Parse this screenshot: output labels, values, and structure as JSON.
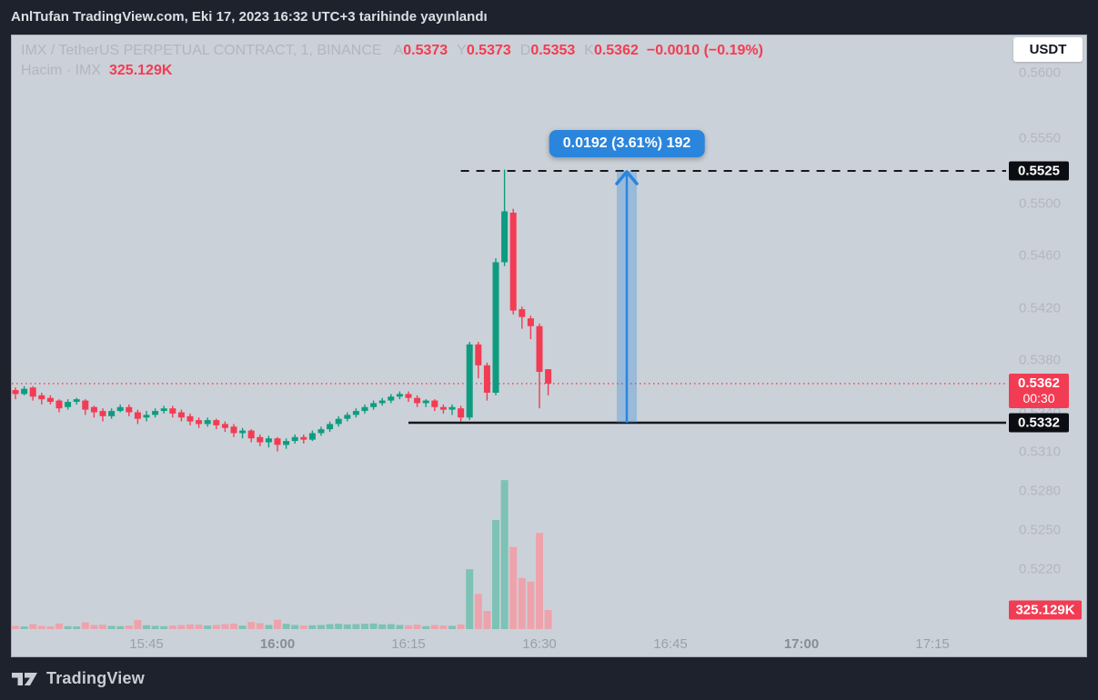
{
  "publish_bar": {
    "text": "AnlTufan TradingView.com, Eki 17, 2023 16:32 UTC+3 tarihinde yayınlandı"
  },
  "legend": {
    "symbol": "IMX / TetherUS PERPETUAL CONTRACT, 1, BINANCE",
    "ohlc_fields": [
      {
        "key": "A",
        "value": "0.5373"
      },
      {
        "key": "Y",
        "value": "0.5373"
      },
      {
        "key": "D",
        "value": "0.5353"
      },
      {
        "key": "K",
        "value": "0.5362"
      }
    ],
    "change": "−0.0010 (−0.19%)",
    "volume_label": "Hacim · IMX",
    "volume_value": "325.129K"
  },
  "currency_button_label": "USDT",
  "measure_tool": {
    "label": "0.0192 (3.61%) 192",
    "from_price": 0.5332,
    "to_price": 0.5525,
    "minute_index": 70
  },
  "levels": {
    "resistance": {
      "price": 0.5525,
      "style": "dashed",
      "start_minute_index": 51
    },
    "support": {
      "price": 0.5332,
      "style": "solid",
      "start_minute_index": 45
    },
    "last_price": 0.5362
  },
  "price_tags": {
    "high": {
      "label": "0.5525",
      "price": 0.5525,
      "style": "black"
    },
    "last": {
      "label": "0.5362",
      "countdown": "00:30",
      "price": 0.5362,
      "style": "red"
    },
    "low": {
      "label": "0.5332",
      "price": 0.5332,
      "style": "black"
    },
    "volume": {
      "label": "325.129K",
      "value_k": 325.129,
      "style": "red"
    }
  },
  "footer": {
    "brand": "TradingView"
  },
  "colors": {
    "up": "#0e9c80",
    "down": "#f23c53",
    "vol_up": "#7dc2b5",
    "vol_down": "#eea3ac",
    "blue": "#2a85dc",
    "level_black": "#15171c",
    "panel_bg": "#cbd1d8",
    "frame_bg": "#1e222d",
    "tag_red": "#f23c53",
    "tag_black": "#0b0d13"
  },
  "chart_data": {
    "type": "candlestick",
    "interval": "1",
    "price_axis_ticks": [
      {
        "label": "0.5600",
        "value": 0.56
      },
      {
        "label": "0.5550",
        "value": 0.555
      },
      {
        "label": "0.5500",
        "value": 0.55
      },
      {
        "label": "0.5460",
        "value": 0.546
      },
      {
        "label": "0.5420",
        "value": 0.542
      },
      {
        "label": "0.5380",
        "value": 0.538
      },
      {
        "label": "0.5340",
        "value": 0.534
      },
      {
        "label": "0.5310",
        "value": 0.531
      },
      {
        "label": "0.5280",
        "value": 0.528
      },
      {
        "label": "0.5250",
        "value": 0.525
      },
      {
        "label": "0.5220",
        "value": 0.522
      }
    ],
    "time_axis_ticks": [
      {
        "label": "15:45",
        "minute_index": 15,
        "bold": false
      },
      {
        "label": "16:00",
        "minute_index": 30,
        "bold": true
      },
      {
        "label": "16:15",
        "minute_index": 45,
        "bold": false
      },
      {
        "label": "16:30",
        "minute_index": 60,
        "bold": false
      },
      {
        "label": "16:45",
        "minute_index": 75,
        "bold": false
      },
      {
        "label": "17:00",
        "minute_index": 90,
        "bold": true
      },
      {
        "label": "17:15",
        "minute_index": 105,
        "bold": false
      }
    ],
    "columns": [
      "time",
      "open",
      "high",
      "low",
      "close",
      "volume_k"
    ],
    "candles": [
      [
        "15:30",
        0.5357,
        0.5359,
        0.535,
        0.5354,
        55
      ],
      [
        "15:31",
        0.5354,
        0.536,
        0.5353,
        0.5358,
        45
      ],
      [
        "15:32",
        0.5359,
        0.536,
        0.5349,
        0.5352,
        85
      ],
      [
        "15:33",
        0.5353,
        0.5355,
        0.5346,
        0.535,
        55
      ],
      [
        "15:34",
        0.5351,
        0.5353,
        0.5346,
        0.5348,
        45
      ],
      [
        "15:35",
        0.5349,
        0.535,
        0.534,
        0.5343,
        95
      ],
      [
        "15:36",
        0.5344,
        0.535,
        0.5342,
        0.5348,
        50
      ],
      [
        "15:37",
        0.5348,
        0.5351,
        0.5346,
        0.535,
        45
      ],
      [
        "15:38",
        0.5349,
        0.535,
        0.5338,
        0.5342,
        115
      ],
      [
        "15:39",
        0.5344,
        0.5345,
        0.5336,
        0.534,
        70
      ],
      [
        "15:40",
        0.5341,
        0.5343,
        0.5333,
        0.5337,
        75
      ],
      [
        "15:41",
        0.5337,
        0.5343,
        0.5335,
        0.5341,
        55
      ],
      [
        "15:42",
        0.5341,
        0.5346,
        0.534,
        0.5344,
        50
      ],
      [
        "15:43",
        0.5344,
        0.5346,
        0.5337,
        0.534,
        60
      ],
      [
        "15:44",
        0.534,
        0.5342,
        0.5331,
        0.5335,
        155
      ],
      [
        "15:45",
        0.5336,
        0.5341,
        0.5333,
        0.5338,
        65
      ],
      [
        "15:46",
        0.5338,
        0.5343,
        0.5336,
        0.5341,
        55
      ],
      [
        "15:47",
        0.5341,
        0.5345,
        0.5339,
        0.5343,
        50
      ],
      [
        "15:48",
        0.5343,
        0.5345,
        0.5336,
        0.5339,
        60
      ],
      [
        "15:49",
        0.534,
        0.5342,
        0.5333,
        0.5336,
        70
      ],
      [
        "15:50",
        0.5337,
        0.5339,
        0.533,
        0.5333,
        80
      ],
      [
        "15:51",
        0.5334,
        0.5336,
        0.5328,
        0.5331,
        75
      ],
      [
        "15:52",
        0.5331,
        0.5336,
        0.5329,
        0.5334,
        60
      ],
      [
        "15:53",
        0.5334,
        0.5335,
        0.5327,
        0.533,
        70
      ],
      [
        "15:54",
        0.5331,
        0.5333,
        0.5325,
        0.5328,
        85
      ],
      [
        "15:55",
        0.5329,
        0.5331,
        0.5321,
        0.5324,
        95
      ],
      [
        "15:56",
        0.5324,
        0.5328,
        0.532,
        0.5326,
        60
      ],
      [
        "15:57",
        0.5326,
        0.5327,
        0.5317,
        0.532,
        120
      ],
      [
        "15:58",
        0.5321,
        0.5323,
        0.5314,
        0.5317,
        100
      ],
      [
        "15:59",
        0.5317,
        0.5322,
        0.5313,
        0.532,
        70
      ],
      [
        "16:00",
        0.532,
        0.5321,
        0.531,
        0.5315,
        160
      ],
      [
        "16:01",
        0.5315,
        0.532,
        0.5312,
        0.5318,
        90
      ],
      [
        "16:02",
        0.5318,
        0.5323,
        0.5316,
        0.5321,
        70
      ],
      [
        "16:03",
        0.5321,
        0.5323,
        0.5316,
        0.5319,
        60
      ],
      [
        "16:04",
        0.5319,
        0.5326,
        0.5318,
        0.5324,
        65
      ],
      [
        "16:05",
        0.5324,
        0.5329,
        0.5322,
        0.5327,
        70
      ],
      [
        "16:06",
        0.5327,
        0.5333,
        0.5325,
        0.5331,
        85
      ],
      [
        "16:07",
        0.5331,
        0.5337,
        0.5329,
        0.5335,
        90
      ],
      [
        "16:08",
        0.5335,
        0.534,
        0.5333,
        0.5338,
        80
      ],
      [
        "16:09",
        0.5338,
        0.5343,
        0.5336,
        0.5341,
        85
      ],
      [
        "16:10",
        0.5341,
        0.5346,
        0.5339,
        0.5344,
        90
      ],
      [
        "16:11",
        0.5344,
        0.5349,
        0.5342,
        0.5347,
        95
      ],
      [
        "16:12",
        0.5347,
        0.5351,
        0.5345,
        0.5349,
        80
      ],
      [
        "16:13",
        0.5349,
        0.5354,
        0.5347,
        0.5352,
        85
      ],
      [
        "16:14",
        0.5352,
        0.5356,
        0.535,
        0.5354,
        70
      ],
      [
        "16:15",
        0.5354,
        0.5356,
        0.5348,
        0.5351,
        65
      ],
      [
        "16:16",
        0.5351,
        0.5353,
        0.5344,
        0.5347,
        75
      ],
      [
        "16:17",
        0.5347,
        0.535,
        0.5344,
        0.5349,
        50
      ],
      [
        "16:18",
        0.5349,
        0.535,
        0.5341,
        0.5344,
        70
      ],
      [
        "16:19",
        0.5344,
        0.5346,
        0.5339,
        0.5342,
        60
      ],
      [
        "16:20",
        0.5342,
        0.5346,
        0.5338,
        0.5344,
        55
      ],
      [
        "16:21",
        0.5343,
        0.5345,
        0.5333,
        0.5336,
        80
      ],
      [
        "16:22",
        0.5336,
        0.5394,
        0.5334,
        0.5392,
        1020
      ],
      [
        "16:23",
        0.5392,
        0.5394,
        0.5366,
        0.5376,
        600
      ],
      [
        "16:24",
        0.5376,
        0.5378,
        0.5349,
        0.5355,
        310
      ],
      [
        "16:25",
        0.5355,
        0.5458,
        0.5353,
        0.5455,
        1860
      ],
      [
        "16:26",
        0.5455,
        0.5526,
        0.5452,
        0.5494,
        2540
      ],
      [
        "16:27",
        0.5493,
        0.5496,
        0.5415,
        0.5418,
        1400
      ],
      [
        "16:28",
        0.5419,
        0.5421,
        0.5404,
        0.5413,
        870
      ],
      [
        "16:29",
        0.5412,
        0.5414,
        0.5396,
        0.5406,
        810
      ],
      [
        "16:30",
        0.5406,
        0.5408,
        0.5343,
        0.5371,
        1640
      ],
      [
        "16:31",
        0.5373,
        0.5373,
        0.5353,
        0.5362,
        325.129
      ]
    ]
  }
}
